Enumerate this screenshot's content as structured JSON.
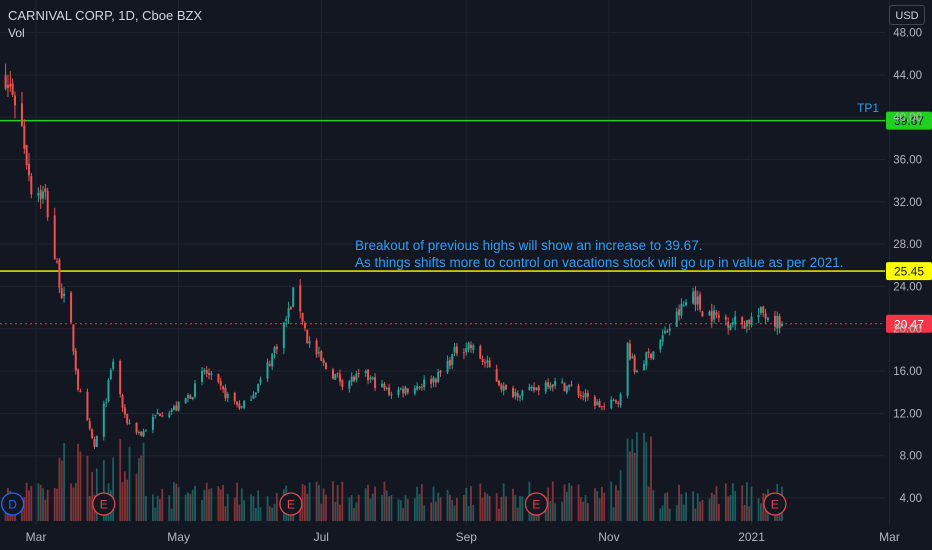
{
  "header": {
    "symbol_line": "CARNIVAL CORP, 1D, Cboe BZX",
    "volume_label": "Vol",
    "currency": "USD"
  },
  "annotations": {
    "note_line1": "Breakout of previous highs will show an increase to 39.67.",
    "note_line2": "As things shifts more to control on vacations stock will go up in value as per 2021.",
    "tp_label": "TP1"
  },
  "colors": {
    "background": "#131722",
    "grid": "#1f2430",
    "up": "#26a69a",
    "down": "#ef5350",
    "tp_line": "#1fd01f",
    "breakout_line": "#ffff00",
    "last_price": "#f23645",
    "annotation_text": "#2f9df4"
  },
  "chart_data": {
    "type": "candlestick",
    "y_axis": {
      "ticks": [
        "48.00",
        "44.00",
        "40.00",
        "36.00",
        "32.00",
        "28.00",
        "24.00",
        "20.00",
        "16.00",
        "12.00",
        "8.00",
        "4.00"
      ],
      "ylim": [
        0.4,
        49.7
      ]
    },
    "x_axis": {
      "ticks": [
        "Mar",
        "May",
        "Jul",
        "Sep",
        "Nov",
        "2021",
        "Mar"
      ]
    },
    "horizontal_levels": [
      {
        "label": "39.67",
        "value": 39.67,
        "color": "#1fd01f"
      },
      {
        "label": "25.45",
        "value": 25.45,
        "color": "#ffff00"
      },
      {
        "label": "20.47",
        "value": 20.47,
        "color": "#f23645",
        "style": "dotted"
      }
    ],
    "events": [
      {
        "label": "D",
        "date": "2020-02-20",
        "kind": "dividend"
      },
      {
        "label": "E",
        "date": "2020-03-30",
        "kind": "earnings"
      },
      {
        "label": "E",
        "date": "2020-06-18",
        "kind": "earnings"
      },
      {
        "label": "E",
        "date": "2020-10-01",
        "kind": "earnings"
      },
      {
        "label": "E",
        "date": "2021-01-11",
        "kind": "earnings"
      }
    ],
    "price_path": [
      [
        "2020-02-10",
        43.2
      ],
      [
        "2020-02-20",
        42.6
      ],
      [
        "2020-02-24",
        39.0
      ],
      [
        "2020-02-28",
        33.5
      ],
      [
        "2020-03-05",
        32.5
      ],
      [
        "2020-03-09",
        26.8
      ],
      [
        "2020-03-12",
        23.5
      ],
      [
        "2020-03-16",
        20.0
      ],
      [
        "2020-03-19",
        14.5
      ],
      [
        "2020-03-23",
        11.0
      ],
      [
        "2020-03-26",
        8.8
      ],
      [
        "2020-03-31",
        13.5
      ],
      [
        "2020-04-03",
        17.0
      ],
      [
        "2020-04-08",
        11.5
      ],
      [
        "2020-04-15",
        10.0
      ],
      [
        "2020-04-22",
        12.0
      ],
      [
        "2020-04-30",
        12.5
      ],
      [
        "2020-05-07",
        14.0
      ],
      [
        "2020-05-12",
        16.0
      ],
      [
        "2020-05-20",
        14.0
      ],
      [
        "2020-05-28",
        12.5
      ],
      [
        "2020-06-05",
        15.0
      ],
      [
        "2020-06-10",
        17.5
      ],
      [
        "2020-06-17",
        21.5
      ],
      [
        "2020-06-20",
        24.0
      ],
      [
        "2020-06-25",
        19.0
      ],
      [
        "2020-07-02",
        16.5
      ],
      [
        "2020-07-10",
        15.0
      ],
      [
        "2020-07-20",
        15.5
      ],
      [
        "2020-07-30",
        14.0
      ],
      [
        "2020-08-10",
        14.5
      ],
      [
        "2020-08-20",
        15.5
      ],
      [
        "2020-08-28",
        18.0
      ],
      [
        "2020-09-02",
        18.5
      ],
      [
        "2020-09-10",
        16.5
      ],
      [
        "2020-09-18",
        14.0
      ],
      [
        "2020-09-28",
        14.0
      ],
      [
        "2020-10-06",
        15.0
      ],
      [
        "2020-10-15",
        14.5
      ],
      [
        "2020-10-22",
        13.5
      ],
      [
        "2020-10-30",
        12.5
      ],
      [
        "2020-11-06",
        13.5
      ],
      [
        "2020-11-09",
        18.5
      ],
      [
        "2020-11-12",
        16.0
      ],
      [
        "2020-11-18",
        17.5
      ],
      [
        "2020-11-25",
        19.5
      ],
      [
        "2020-12-01",
        21.5
      ],
      [
        "2020-12-07",
        23.5
      ],
      [
        "2020-12-10",
        22.0
      ],
      [
        "2020-12-18",
        21.0
      ],
      [
        "2020-12-28",
        20.5
      ],
      [
        "2021-01-06",
        21.5
      ],
      [
        "2021-01-14",
        20.47
      ]
    ]
  }
}
